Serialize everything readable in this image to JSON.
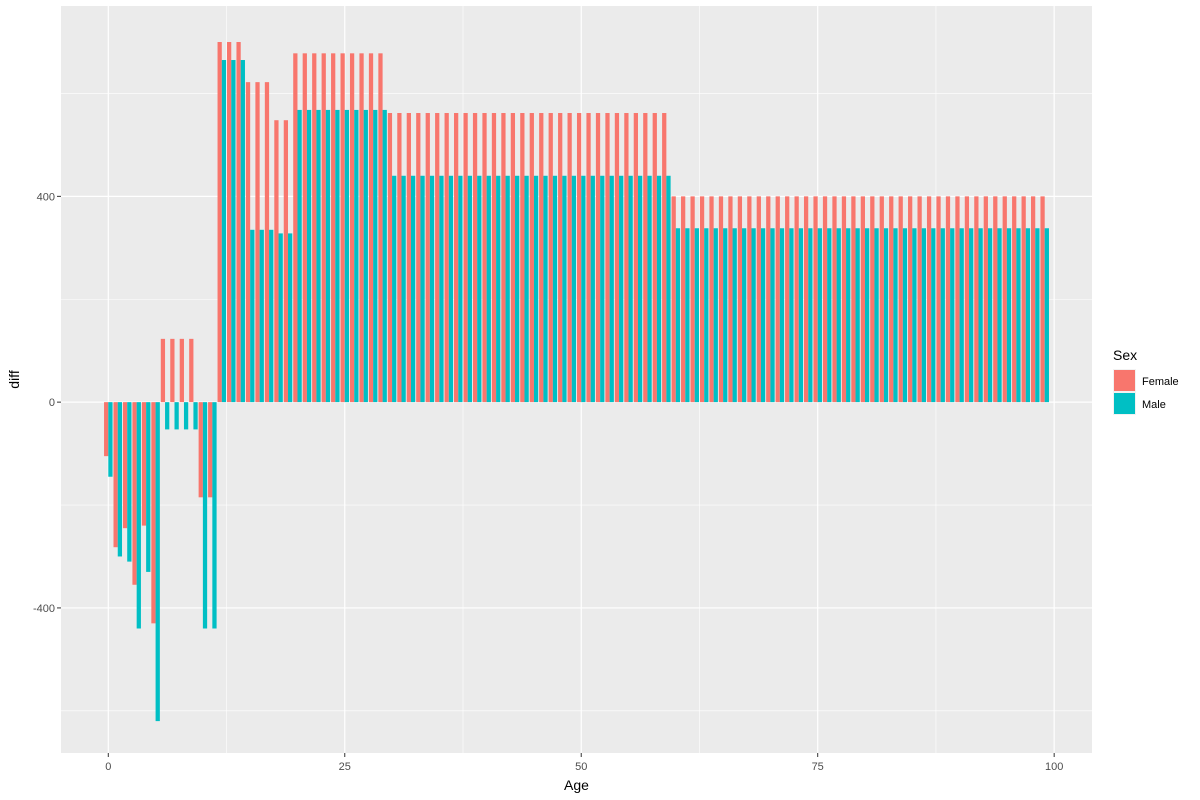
{
  "chart_data": {
    "type": "bar",
    "xlabel": "Age",
    "ylabel": "diff",
    "xlim": [
      -5,
      104
    ],
    "ylim": [
      -682,
      770
    ],
    "x_ticks": [
      0,
      25,
      50,
      75,
      100
    ],
    "x_minor": [
      12.5,
      37.5,
      62.5,
      87.5
    ],
    "y_ticks": [
      -400,
      0,
      400
    ],
    "y_minor": [
      -600,
      -200,
      200,
      600
    ],
    "grid": true,
    "legend": {
      "title": "Sex",
      "position": "right"
    },
    "colors": {
      "panel": "#EBEBEB",
      "grid": "#FFFFFF"
    },
    "series": [
      {
        "name": "Female",
        "color": "#F8766D",
        "segments": [
          {
            "from": 0,
            "to": 0,
            "value": -105
          },
          {
            "from": 1,
            "to": 1,
            "value": -282
          },
          {
            "from": 2,
            "to": 2,
            "value": -245
          },
          {
            "from": 3,
            "to": 3,
            "value": -355
          },
          {
            "from": 4,
            "to": 4,
            "value": -240
          },
          {
            "from": 5,
            "to": 5,
            "value": -430
          },
          {
            "from": 6,
            "to": 9,
            "value": 123
          },
          {
            "from": 10,
            "to": 11,
            "value": -185
          },
          {
            "from": 12,
            "to": 14,
            "value": 700
          },
          {
            "from": 15,
            "to": 17,
            "value": 622
          },
          {
            "from": 18,
            "to": 19,
            "value": 548
          },
          {
            "from": 20,
            "to": 29,
            "value": 678
          },
          {
            "from": 30,
            "to": 59,
            "value": 562
          },
          {
            "from": 60,
            "to": 99,
            "value": 400
          }
        ]
      },
      {
        "name": "Male",
        "color": "#00BFC4",
        "segments": [
          {
            "from": 0,
            "to": 0,
            "value": -145
          },
          {
            "from": 1,
            "to": 1,
            "value": -300
          },
          {
            "from": 2,
            "to": 2,
            "value": -310
          },
          {
            "from": 3,
            "to": 3,
            "value": -440
          },
          {
            "from": 4,
            "to": 4,
            "value": -330
          },
          {
            "from": 5,
            "to": 5,
            "value": -620
          },
          {
            "from": 6,
            "to": 9,
            "value": -53
          },
          {
            "from": 10,
            "to": 11,
            "value": -440
          },
          {
            "from": 12,
            "to": 14,
            "value": 665
          },
          {
            "from": 15,
            "to": 17,
            "value": 335
          },
          {
            "from": 18,
            "to": 19,
            "value": 328
          },
          {
            "from": 20,
            "to": 29,
            "value": 568
          },
          {
            "from": 30,
            "to": 59,
            "value": 440
          },
          {
            "from": 60,
            "to": 99,
            "value": 338
          }
        ]
      }
    ]
  }
}
